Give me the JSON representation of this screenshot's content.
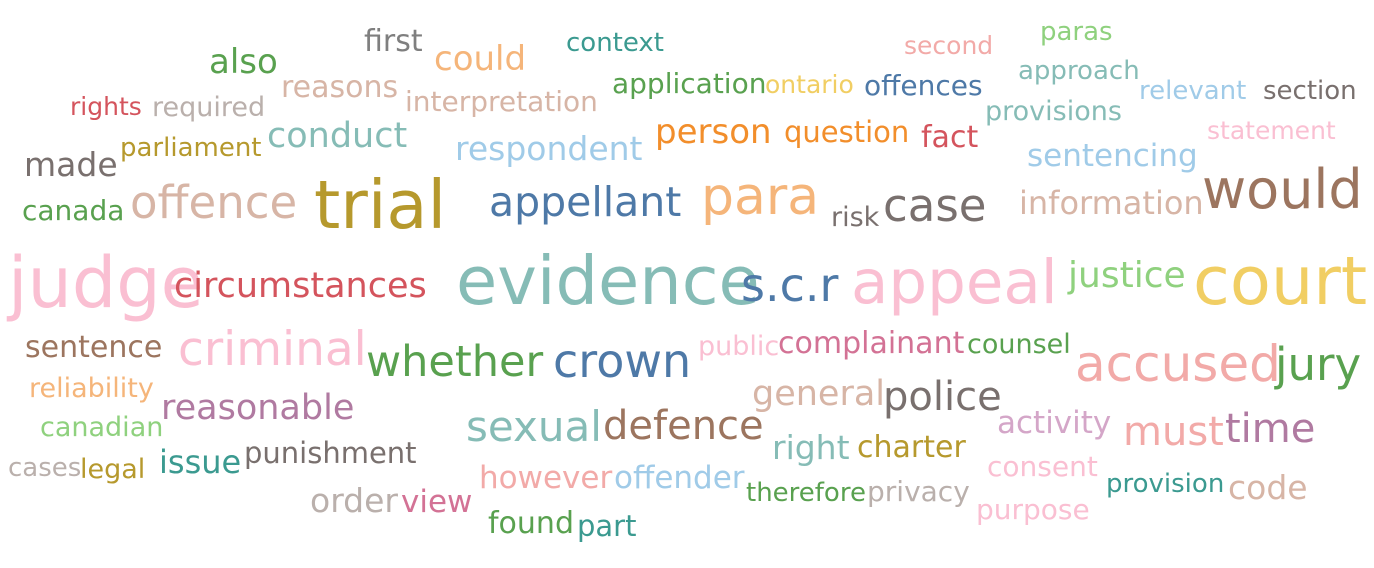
{
  "words": [
    {
      "text": "first",
      "color": "#7f7f7f"
    },
    {
      "text": "could",
      "color": "#f5b57a"
    },
    {
      "text": "context",
      "color": "#3b9a90"
    },
    {
      "text": "second",
      "color": "#f2aaa8"
    },
    {
      "text": "paras",
      "color": "#8fd17e"
    },
    {
      "text": "also",
      "color": "#59a14f"
    },
    {
      "text": "reasons",
      "color": "#d7b5a6"
    },
    {
      "text": "application",
      "color": "#59a14f"
    },
    {
      "text": "ontario",
      "color": "#f1ce63"
    },
    {
      "text": "offences",
      "color": "#4e79a7"
    },
    {
      "text": "approach",
      "color": "#86bcb6"
    },
    {
      "text": "rights",
      "color": "#d4545d"
    },
    {
      "text": "required",
      "color": "#bab0ac"
    },
    {
      "text": "interpretation",
      "color": "#d7b5a6"
    },
    {
      "text": "relevant",
      "color": "#a0cbe8"
    },
    {
      "text": "section",
      "color": "#79706e"
    },
    {
      "text": "provisions",
      "color": "#86bcb6"
    },
    {
      "text": "statement",
      "color": "#fabfd2"
    },
    {
      "text": "person",
      "color": "#f28e2b"
    },
    {
      "text": "question",
      "color": "#f28e2b"
    },
    {
      "text": "fact",
      "color": "#d4545d"
    },
    {
      "text": "conduct",
      "color": "#86bcb6"
    },
    {
      "text": "parliament",
      "color": "#b6992d"
    },
    {
      "text": "respondent",
      "color": "#a0cbe8"
    },
    {
      "text": "made",
      "color": "#79706e"
    },
    {
      "text": "sentencing",
      "color": "#a0cbe8"
    },
    {
      "text": "would",
      "color": "#9c755f"
    },
    {
      "text": "offence",
      "color": "#d7b5a6"
    },
    {
      "text": "trial",
      "color": "#b6992d"
    },
    {
      "text": "appellant",
      "color": "#4e79a7"
    },
    {
      "text": "para",
      "color": "#f5b57a"
    },
    {
      "text": "case",
      "color": "#79706e"
    },
    {
      "text": "canada",
      "color": "#59a14f"
    },
    {
      "text": "information",
      "color": "#d7b5a6"
    },
    {
      "text": "risk",
      "color": "#79706e"
    },
    {
      "text": "judge",
      "color": "#fabfd2"
    },
    {
      "text": "circumstances",
      "color": "#d4545d"
    },
    {
      "text": "evidence",
      "color": "#86bcb6"
    },
    {
      "text": "s.c.r",
      "color": "#4e79a7"
    },
    {
      "text": "appeal",
      "color": "#fabfd2"
    },
    {
      "text": "justice",
      "color": "#8fd17e"
    },
    {
      "text": "court",
      "color": "#f1ce63"
    },
    {
      "text": "sentence",
      "color": "#9c755f"
    },
    {
      "text": "criminal",
      "color": "#fabfd2"
    },
    {
      "text": "public",
      "color": "#fabfd2"
    },
    {
      "text": "complainant",
      "color": "#d37295"
    },
    {
      "text": "counsel",
      "color": "#59a14f"
    },
    {
      "text": "whether",
      "color": "#59a14f"
    },
    {
      "text": "crown",
      "color": "#4e79a7"
    },
    {
      "text": "accused",
      "color": "#f2aaa8"
    },
    {
      "text": "jury",
      "color": "#59a14f"
    },
    {
      "text": "reliability",
      "color": "#f5b57a"
    },
    {
      "text": "reasonable",
      "color": "#b07aa1"
    },
    {
      "text": "general",
      "color": "#d7b5a6"
    },
    {
      "text": "police",
      "color": "#79706e"
    },
    {
      "text": "canadian",
      "color": "#8fd17e"
    },
    {
      "text": "activity",
      "color": "#d4a6c8"
    },
    {
      "text": "sexual",
      "color": "#86bcb6"
    },
    {
      "text": "defence",
      "color": "#9c755f"
    },
    {
      "text": "must",
      "color": "#f2aaa8"
    },
    {
      "text": "time",
      "color": "#b07aa1"
    },
    {
      "text": "right",
      "color": "#86bcb6"
    },
    {
      "text": "charter",
      "color": "#b6992d"
    },
    {
      "text": "cases",
      "color": "#bab0ac"
    },
    {
      "text": "legal",
      "color": "#b6992d"
    },
    {
      "text": "issue",
      "color": "#3b9a90"
    },
    {
      "text": "punishment",
      "color": "#79706e"
    },
    {
      "text": "consent",
      "color": "#fabfd2"
    },
    {
      "text": "however",
      "color": "#f2aaa8"
    },
    {
      "text": "offender",
      "color": "#a0cbe8"
    },
    {
      "text": "provision",
      "color": "#3b9a90"
    },
    {
      "text": "code",
      "color": "#d7b5a6"
    },
    {
      "text": "order",
      "color": "#bab0ac"
    },
    {
      "text": "view",
      "color": "#d37295"
    },
    {
      "text": "therefore",
      "color": "#59a14f"
    },
    {
      "text": "privacy",
      "color": "#bab0ac"
    },
    {
      "text": "purpose",
      "color": "#fabfd2"
    },
    {
      "text": "found",
      "color": "#59a14f"
    },
    {
      "text": "part",
      "color": "#3b9a90"
    }
  ]
}
